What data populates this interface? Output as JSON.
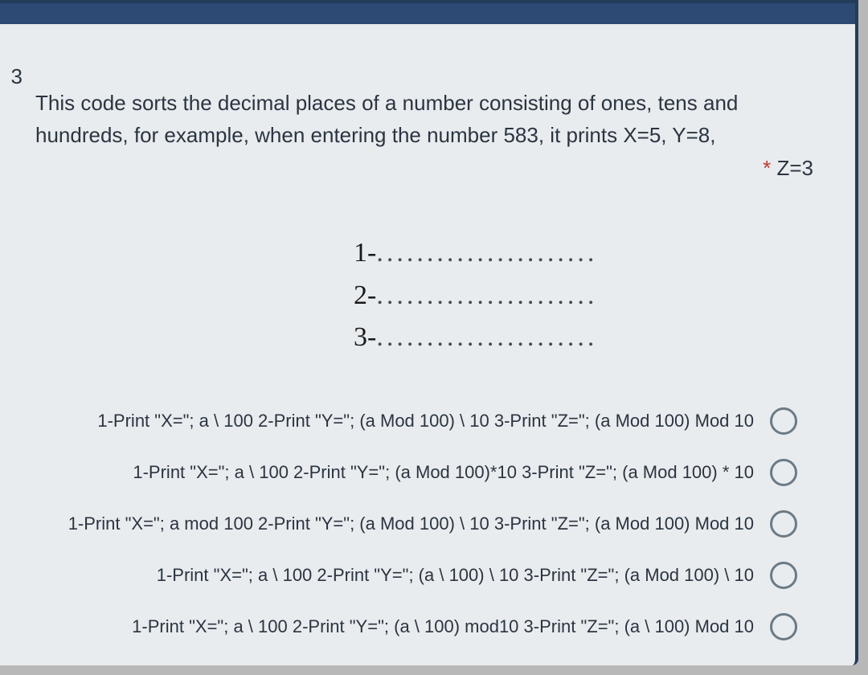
{
  "question": {
    "number": "3",
    "text_line1": "This code sorts the decimal places of a number consisting of ones, tens and",
    "text_line2": "hundreds, for example, when entering the number 583, it prints X=5, Y=8,",
    "required_marker": "*",
    "text_line3_suffix": "Z=3"
  },
  "blanks": {
    "b1_prefix": "1-",
    "b2_prefix": "2-",
    "b3_prefix": "3-",
    "dots": "......................"
  },
  "options": [
    {
      "text": "1-Print \"X=\"; a \\ 100 2-Print \"Y=\"; (a Mod 100) \\ 10 3-Print \"Z=\"; (a Mod 100) Mod 10"
    },
    {
      "text": "1-Print \"X=\"; a \\ 100 2-Print \"Y=\"; (a Mod 100)*10 3-Print \"Z=\"; (a Mod 100) * 10"
    },
    {
      "text": "1-Print \"X=\"; a mod 100 2-Print \"Y=\"; (a Mod 100) \\ 10 3-Print \"Z=\"; (a Mod 100) Mod 10"
    },
    {
      "text": "1-Print \"X=\"; a \\ 100 2-Print \"Y=\"; (a \\ 100) \\ 10 3-Print \"Z=\"; (a Mod 100) \\ 10"
    },
    {
      "text": "1-Print \"X=\"; a \\ 100 2-Print \"Y=\"; (a \\ 100) mod10 3-Print \"Z=\"; (a \\ 100) Mod 10"
    }
  ],
  "colors": {
    "page_bg": "#e8ecef",
    "outer_bg": "#b8b8b9",
    "border": "#223c5a",
    "topbar": "#2c4a73",
    "text": "#2b3440",
    "required": "#c0392b",
    "radio_border": "#6c7a85"
  }
}
